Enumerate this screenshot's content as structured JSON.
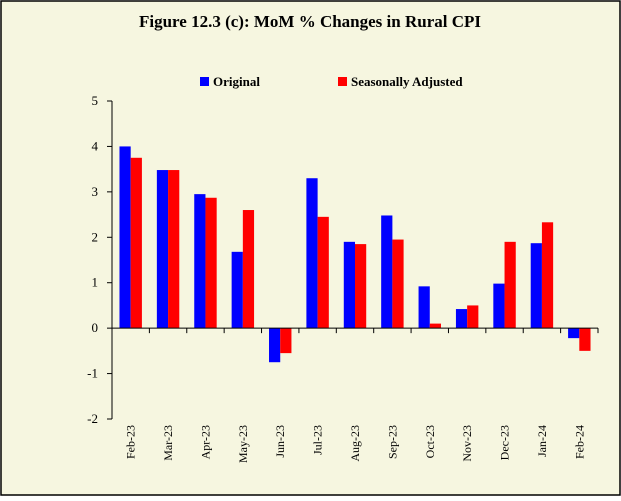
{
  "chart_data": {
    "type": "bar",
    "title": "Figure 12.3 (c): MoM % Changes in Rural CPI",
    "categories": [
      "Feb-23",
      "Mar-23",
      "Apr-23",
      "May-23",
      "Jun-23",
      "Jul-23",
      "Aug-23",
      "Sep-23",
      "Oct-23",
      "Nov-23",
      "Dec-23",
      "Jan-24",
      "Feb-24"
    ],
    "series": [
      {
        "name": "Original",
        "color": "#0000ff",
        "values": [
          4.0,
          3.48,
          2.95,
          1.68,
          -0.75,
          3.3,
          1.9,
          2.48,
          0.92,
          0.42,
          0.98,
          1.87,
          -0.22
        ]
      },
      {
        "name": "Seasonally Adjusted",
        "color": "#ff0000",
        "values": [
          3.75,
          3.48,
          2.87,
          2.6,
          -0.55,
          2.45,
          1.85,
          1.95,
          0.1,
          0.5,
          1.9,
          2.33,
          -0.5
        ]
      }
    ],
    "ylim": [
      -2,
      5
    ],
    "yticks": [
      -2,
      -1,
      0,
      1,
      2,
      3,
      4,
      5
    ],
    "grid": false,
    "legend": "top"
  }
}
